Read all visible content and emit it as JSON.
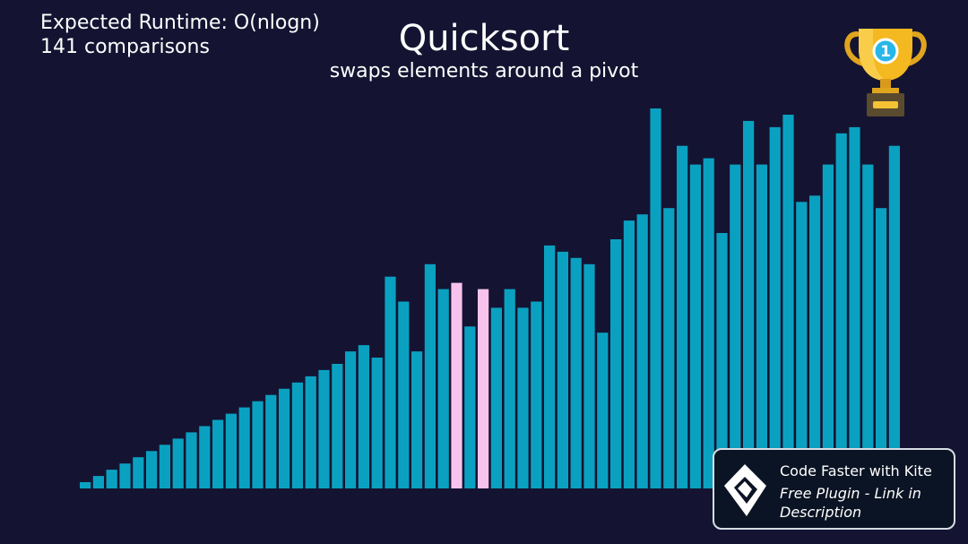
{
  "header": {
    "runtime": "Expected Runtime: O(nlogn)",
    "comparisons": "141 comparisons",
    "title": "Quicksort",
    "subtitle": "swaps elements around a pivot"
  },
  "trophy": {
    "icon": "trophy-icon",
    "rank": "1"
  },
  "promo": {
    "title": "Code Faster with Kite",
    "subtitle": "Free Plugin - Link in Description",
    "icon": "kite-logo-icon"
  },
  "colors": {
    "background": "#141432",
    "bar": "#0aa1c1",
    "highlight": "#f7c3ec"
  },
  "chart_data": {
    "type": "bar",
    "values": [
      1,
      2,
      3,
      4,
      5,
      6,
      7,
      8,
      9,
      10,
      11,
      12,
      13,
      14,
      15,
      16,
      17,
      18,
      19,
      20,
      22,
      23,
      21,
      34,
      30,
      22,
      36,
      32,
      33,
      26,
      32,
      29,
      32,
      29,
      30,
      39,
      38,
      37,
      36,
      25,
      40,
      43,
      44,
      61,
      45,
      55,
      52,
      53,
      41,
      52,
      59,
      52,
      58,
      60,
      46,
      47,
      52,
      57,
      58,
      52,
      45,
      55
    ],
    "highlighted_indices": [
      28,
      30
    ],
    "ylim": [
      0,
      61
    ]
  }
}
